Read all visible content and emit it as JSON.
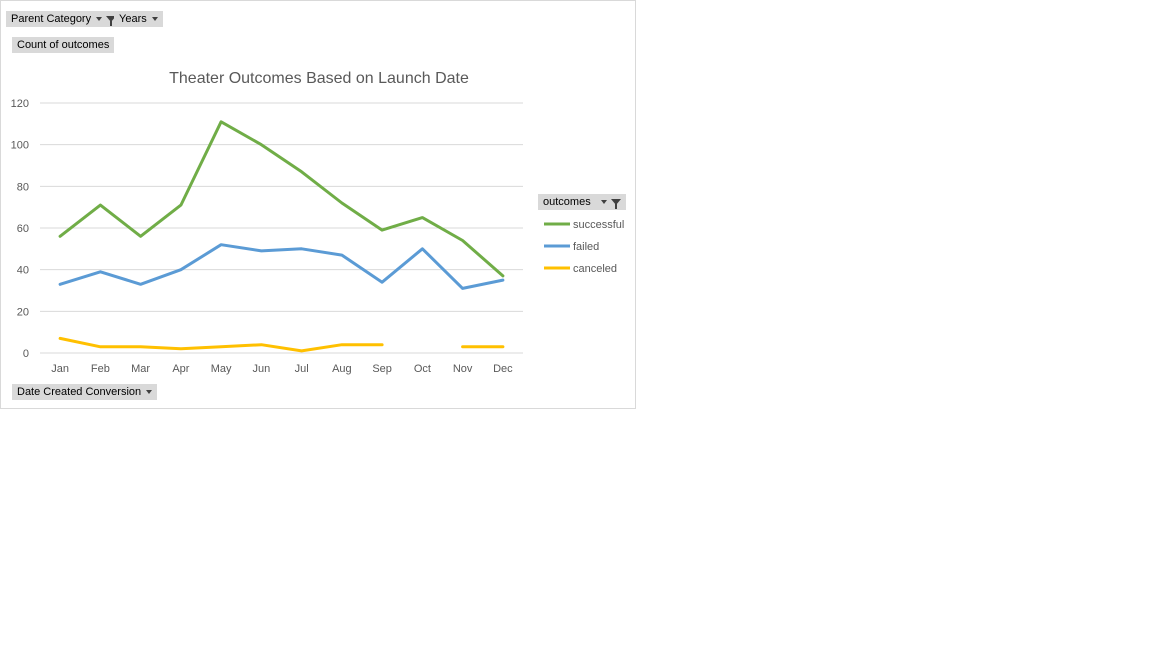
{
  "filters": {
    "parent_category": "Parent Category",
    "years": "Years",
    "values_field": "Count of outcomes",
    "axis_field": "Date Created Conversion",
    "legend_field": "outcomes"
  },
  "chart_data": {
    "type": "line",
    "title": "Theater Outcomes Based on Launch Date",
    "xlabel": "",
    "ylabel": "",
    "categories": [
      "Jan",
      "Feb",
      "Mar",
      "Apr",
      "May",
      "Jun",
      "Jul",
      "Aug",
      "Sep",
      "Oct",
      "Nov",
      "Dec"
    ],
    "ylim": [
      0,
      120
    ],
    "yticks": [
      0,
      20,
      40,
      60,
      80,
      100,
      120
    ],
    "grid": true,
    "legend_position": "right",
    "series": [
      {
        "name": "successful",
        "color": "#70ad47",
        "values": [
          56,
          71,
          56,
          71,
          111,
          100,
          87,
          72,
          59,
          65,
          54,
          37
        ]
      },
      {
        "name": "failed",
        "color": "#5b9bd5",
        "values": [
          33,
          39,
          33,
          40,
          52,
          49,
          50,
          47,
          34,
          50,
          31,
          35
        ]
      },
      {
        "name": "canceled",
        "color": "#ffc000",
        "values": [
          7,
          3,
          3,
          2,
          3,
          4,
          1,
          4,
          4,
          null,
          3,
          3
        ]
      }
    ]
  }
}
